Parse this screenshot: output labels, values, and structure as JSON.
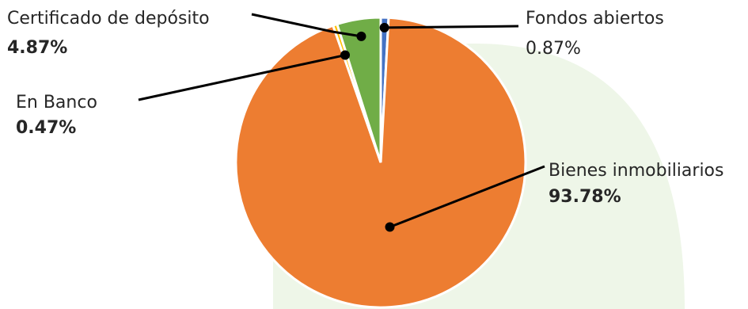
{
  "chart_data": {
    "type": "pie",
    "title": "",
    "slices": [
      {
        "name": "Fondos abiertos",
        "value": 0.87,
        "label": "0.87%",
        "color": "#4472C4",
        "bold_value": false
      },
      {
        "name": "Bienes inmobiliarios",
        "value": 93.78,
        "label": "93.78%",
        "color": "#ED7D31",
        "bold_value": true
      },
      {
        "name": "En Banco",
        "value": 0.47,
        "label": "0.47%",
        "color": "#FFC000",
        "bold_value": true
      },
      {
        "name": "Certificado de depósito",
        "value": 4.87,
        "label": "4.87%",
        "color": "#70AD47",
        "bold_value": true
      }
    ],
    "start_angle_deg": 0,
    "direction": "clockwise",
    "legend": "none",
    "background_accent_color": "#E2F0D9"
  }
}
